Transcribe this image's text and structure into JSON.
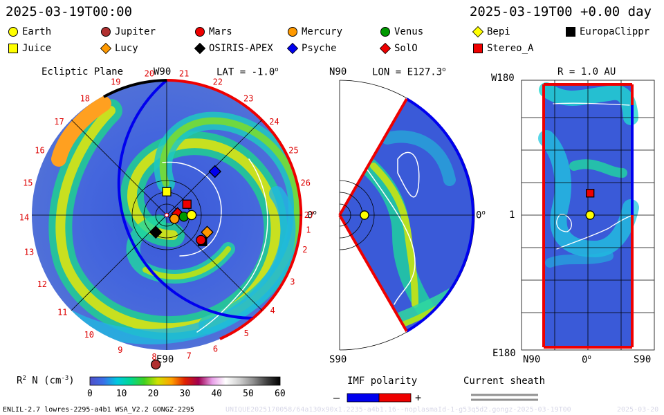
{
  "header": {
    "datetime": "2025-03-19T00:00",
    "relative": "2025-03-19T00 +0.00 day"
  },
  "legend": [
    {
      "label": "Earth",
      "marker": "circle",
      "color": "#ffff00"
    },
    {
      "label": "Jupiter",
      "marker": "circle",
      "color": "#b03030"
    },
    {
      "label": "Mars",
      "marker": "circle",
      "color": "#ee0000"
    },
    {
      "label": "Mercury",
      "marker": "circle",
      "color": "#ff9900"
    },
    {
      "label": "Venus",
      "marker": "circle",
      "color": "#009900"
    },
    {
      "label": "Bepi",
      "marker": "diamond",
      "color": "#ffff00"
    },
    {
      "label": "EuropaClippr",
      "marker": "square",
      "color": "#000000"
    },
    {
      "label": "Juice",
      "marker": "square",
      "color": "#ffff00"
    },
    {
      "label": "Lucy",
      "marker": "diamond",
      "color": "#ff9900"
    },
    {
      "label": "OSIRIS-APEX",
      "marker": "diamond",
      "color": "#000000"
    },
    {
      "label": "Psyche",
      "marker": "diamond",
      "color": "#0000ee"
    },
    {
      "label": "SolO",
      "marker": "diamond",
      "color": "#ee0000"
    },
    {
      "label": "Stereo_A",
      "marker": "square",
      "color": "#ee0000"
    }
  ],
  "panels": {
    "ecliptic": {
      "title": "Ecliptic Plane",
      "top_label": "W90",
      "lat_label": "LAT = -1.0",
      "lat_sup": "o",
      "right_label": "0",
      "right_sup": "o",
      "bottom_label": "E90",
      "carrington_numbers": [
        "20",
        "21",
        "22",
        "23",
        "24",
        "25",
        "26",
        "27",
        "19",
        "18",
        "17",
        "16",
        "15",
        "14",
        "13",
        "12",
        "11",
        "10",
        "9",
        "8",
        "7",
        "6",
        "5",
        "4",
        "3",
        "2",
        "1"
      ]
    },
    "meridional": {
      "top_label": "N90",
      "lon_label": "LON = E127.3",
      "lon_sup": "o",
      "right_label": "0",
      "right_sup": "o",
      "bottom_label": "S90"
    },
    "radial": {
      "title": "R = 1.0 AU",
      "top_left": "W180",
      "mid_left": "1",
      "bottom_left": "E180",
      "x_left": "N90",
      "x_mid": "0",
      "x_mid_sup": "o",
      "x_right": "S90"
    }
  },
  "colorbar": {
    "label": "R",
    "label_sup": "2",
    "label_rest": "N (cm",
    "label_exp": "-3",
    "label_close": ")",
    "ticks": [
      "0",
      "10",
      "20",
      "30",
      "40",
      "50",
      "60"
    ],
    "range": [
      0,
      60
    ],
    "stops": [
      "#5050c8",
      "#3a6fe8",
      "#00c8e0",
      "#00d890",
      "#40d020",
      "#d0e000",
      "#ffa000",
      "#e02000",
      "#a00050",
      "#e8a0e8",
      "#ffffff",
      "#d0d0d0",
      "#909090",
      "#404040",
      "#000000"
    ]
  },
  "imf": {
    "title": "IMF polarity",
    "minus": "–",
    "plus": "+",
    "neg_color": "#0000ee",
    "pos_color": "#ee0000"
  },
  "sheath": {
    "title": "Current sheath",
    "color": "#909090"
  },
  "footer": {
    "model": "ENLIL-2.7 lowres-2295-a4b1 WSA_V2.2 GONGZ-2295",
    "run": "UNIQUE2025170058/64a130x90x1.2235-a4b1.16--noplasmaId-1-g53q5d2.gongz-2025-03-19T00",
    "date": "2025-03-20"
  },
  "chart_data": [
    {
      "type": "heatmap",
      "title": "Ecliptic Plane",
      "quantity": "R^2 N (cm^-3)",
      "range": [
        0,
        60
      ],
      "positions_ecliptic_au": [
        {
          "name": "Earth",
          "x": 0.8,
          "y": 0.0
        },
        {
          "name": "Venus",
          "x": 0.55,
          "y": -0.05
        },
        {
          "name": "Mercury",
          "x": 0.25,
          "y": -0.12
        },
        {
          "name": "Mars",
          "x": 1.1,
          "y": -0.8
        },
        {
          "name": "Jupiter",
          "x": -0.35,
          "y": -4.8
        },
        {
          "name": "Juice",
          "x": 0.0,
          "y": 0.75
        },
        {
          "name": "Stereo_A",
          "x": 0.65,
          "y": 0.35
        },
        {
          "name": "SolO",
          "x": 0.35,
          "y": 0.05
        },
        {
          "name": "Psyche",
          "x": 1.55,
          "y": 1.4
        },
        {
          "name": "Lucy",
          "x": 1.3,
          "y": -0.55
        },
        {
          "name": "OSIRIS-APEX",
          "x": -0.35,
          "y": -0.55
        },
        {
          "name": "EuropaClippr",
          "x": 1.15,
          "y": -0.85
        }
      ]
    },
    {
      "type": "heatmap",
      "title": "LON = E127.3",
      "quantity": "R^2 N (cm^-3)",
      "range": [
        0,
        60
      ],
      "positions": [
        {
          "name": "Earth",
          "r_au": 0.8,
          "lat_deg": 0
        }
      ]
    },
    {
      "type": "heatmap",
      "title": "R = 1.0 AU",
      "quantity": "R^2 N (cm^-3)",
      "range": [
        0,
        60
      ],
      "xlabel_ticks": [
        "N90",
        "0",
        "S90"
      ],
      "ylabel_ticks": [
        "W180",
        "1",
        "E180"
      ],
      "positions": [
        {
          "name": "Earth",
          "lat_deg": 3,
          "lon": "1"
        },
        {
          "name": "Stereo_A",
          "lat_deg": 3,
          "lon_offset_deg": 30
        }
      ]
    }
  ]
}
